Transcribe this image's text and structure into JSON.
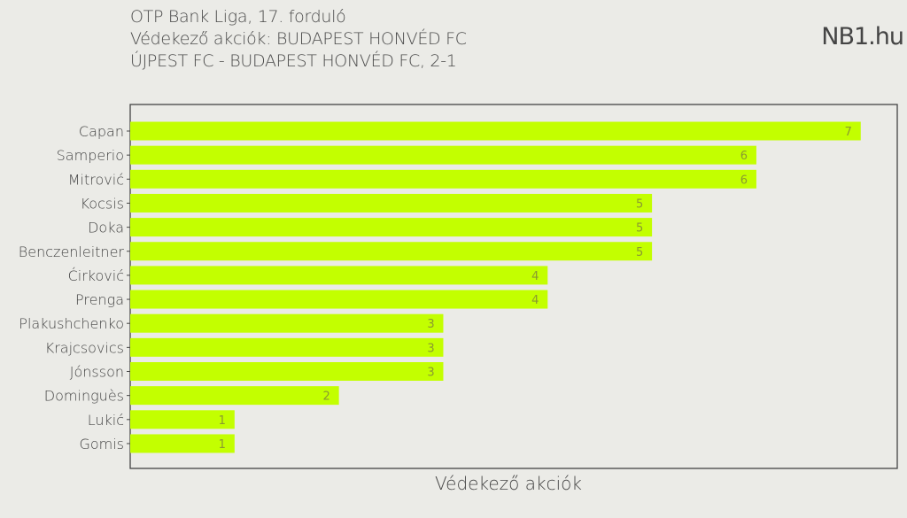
{
  "header": {
    "line1": "OTP Bank Liga, 17. forduló",
    "line2": "Védekező akciók: BUDAPEST HONVÉD FC",
    "line3": "ÚJPEST FC - BUDAPEST HONVÉD FC, 2-1",
    "brand": "NB1.hu"
  },
  "chart_data": {
    "type": "bar",
    "orientation": "horizontal",
    "title": "Védekező akciók: BUDAPEST HONVÉD FC",
    "xlabel": "Védekező akciók",
    "ylabel": "",
    "categories": [
      "Capan",
      "Samperio",
      "Mitrović",
      "Kocsis",
      "Doka",
      "Benczenleitner",
      "Ćirković",
      "Prenga",
      "Plakushchenko",
      "Krajcsovics",
      "Jónsson",
      "Dominguès",
      "Lukić",
      "Gomis"
    ],
    "values": [
      7,
      6,
      6,
      5,
      5,
      5,
      4,
      4,
      3,
      3,
      3,
      2,
      1,
      1
    ],
    "xlim": [
      0,
      7.35
    ],
    "grid": false,
    "bar_color": "#c3ff00",
    "label_color": "#8a9a30"
  }
}
